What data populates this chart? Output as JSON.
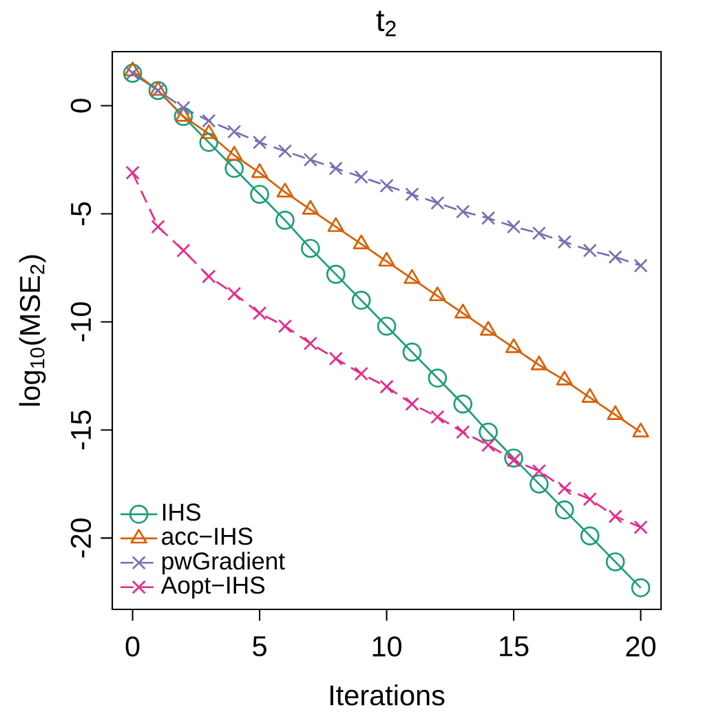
{
  "chart_data": {
    "type": "line",
    "title": "t$_{2}$",
    "xlabel": "Iterations",
    "ylabel": "log$_{10}$(MSE$_{2}$)",
    "x": [
      0,
      1,
      2,
      3,
      4,
      5,
      6,
      7,
      8,
      9,
      10,
      11,
      12,
      13,
      14,
      15,
      16,
      17,
      18,
      19,
      20
    ],
    "xlim": [
      -0.8,
      20.8
    ],
    "ylim": [
      -23.3,
      2.5
    ],
    "xticks": [
      0,
      5,
      10,
      15,
      20
    ],
    "yticks": [
      0,
      -5,
      -10,
      -15,
      -20
    ],
    "grid": false,
    "legend": "bottom left",
    "series": [
      {
        "name": "IHS",
        "color": "#1b9e77",
        "marker": "circle",
        "line_style": "solid",
        "values": [
          1.5,
          0.7,
          -0.5,
          -1.7,
          -2.9,
          -4.1,
          -5.3,
          -6.6,
          -7.8,
          -9.0,
          -10.2,
          -11.4,
          -12.6,
          -13.8,
          -15.1,
          -16.3,
          -17.5,
          -18.7,
          -19.9,
          -21.1,
          -22.3
        ]
      },
      {
        "name": "acc−IHS",
        "color": "#d95f02",
        "marker": "triangle",
        "line_style": "solid",
        "values": [
          1.6,
          0.7,
          -0.5,
          -1.3,
          -2.3,
          -3.1,
          -4.0,
          -4.8,
          -5.6,
          -6.4,
          -7.2,
          -8.0,
          -8.8,
          -9.6,
          -10.4,
          -11.2,
          -12.0,
          -12.7,
          -13.5,
          -14.3,
          -15.1
        ]
      },
      {
        "name": "pwGradient",
        "color": "#7570b3",
        "marker": "cross",
        "line_style": "dashed",
        "values": [
          1.5,
          0.7,
          -0.1,
          -0.7,
          -1.2,
          -1.7,
          -2.1,
          -2.5,
          -2.9,
          -3.3,
          -3.7,
          -4.1,
          -4.5,
          -4.9,
          -5.2,
          -5.6,
          -5.9,
          -6.3,
          -6.7,
          -7.0,
          -7.4
        ]
      },
      {
        "name": "Aopt−IHS",
        "color": "#e7298a",
        "marker": "cross",
        "line_style": "dashed",
        "values": [
          -3.1,
          -5.6,
          -6.7,
          -7.9,
          -8.7,
          -9.6,
          -10.2,
          -11.0,
          -11.7,
          -12.4,
          -13.0,
          -13.8,
          -14.4,
          -15.1,
          -15.7,
          -16.4,
          -16.9,
          -17.7,
          -18.2,
          -19.0,
          -19.5
        ]
      }
    ]
  }
}
